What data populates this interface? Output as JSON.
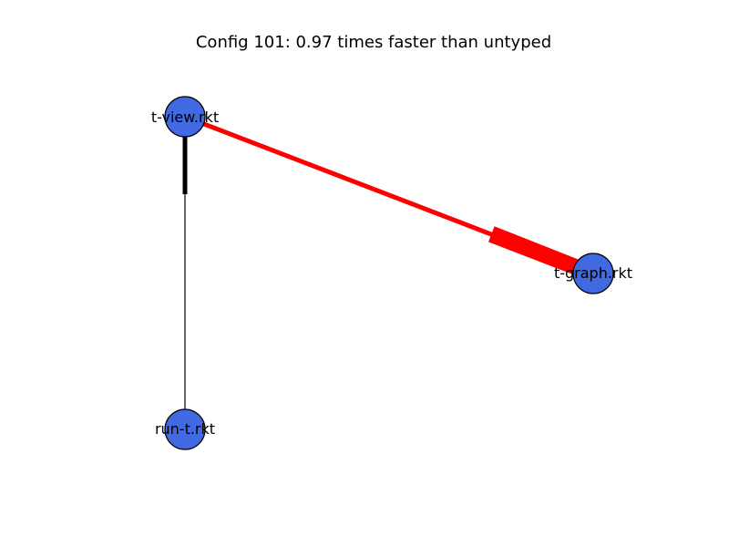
{
  "title": "Config 101: 0.97 times faster than untyped",
  "colors": {
    "node_fill": "#4169e1",
    "node_stroke": "#000000",
    "edge_red": "#ff0000",
    "edge_black": "#000000"
  },
  "nodes": [
    {
      "id": "t-view",
      "label": "t-view.rkt"
    },
    {
      "id": "t-graph",
      "label": "t-graph.rkt"
    },
    {
      "id": "run-t",
      "label": "run-t.rkt"
    }
  ],
  "edges": [
    {
      "from": "t-view",
      "to": "t-graph",
      "color": "red"
    },
    {
      "from": "run-t",
      "to": "t-view",
      "color": "black"
    }
  ]
}
